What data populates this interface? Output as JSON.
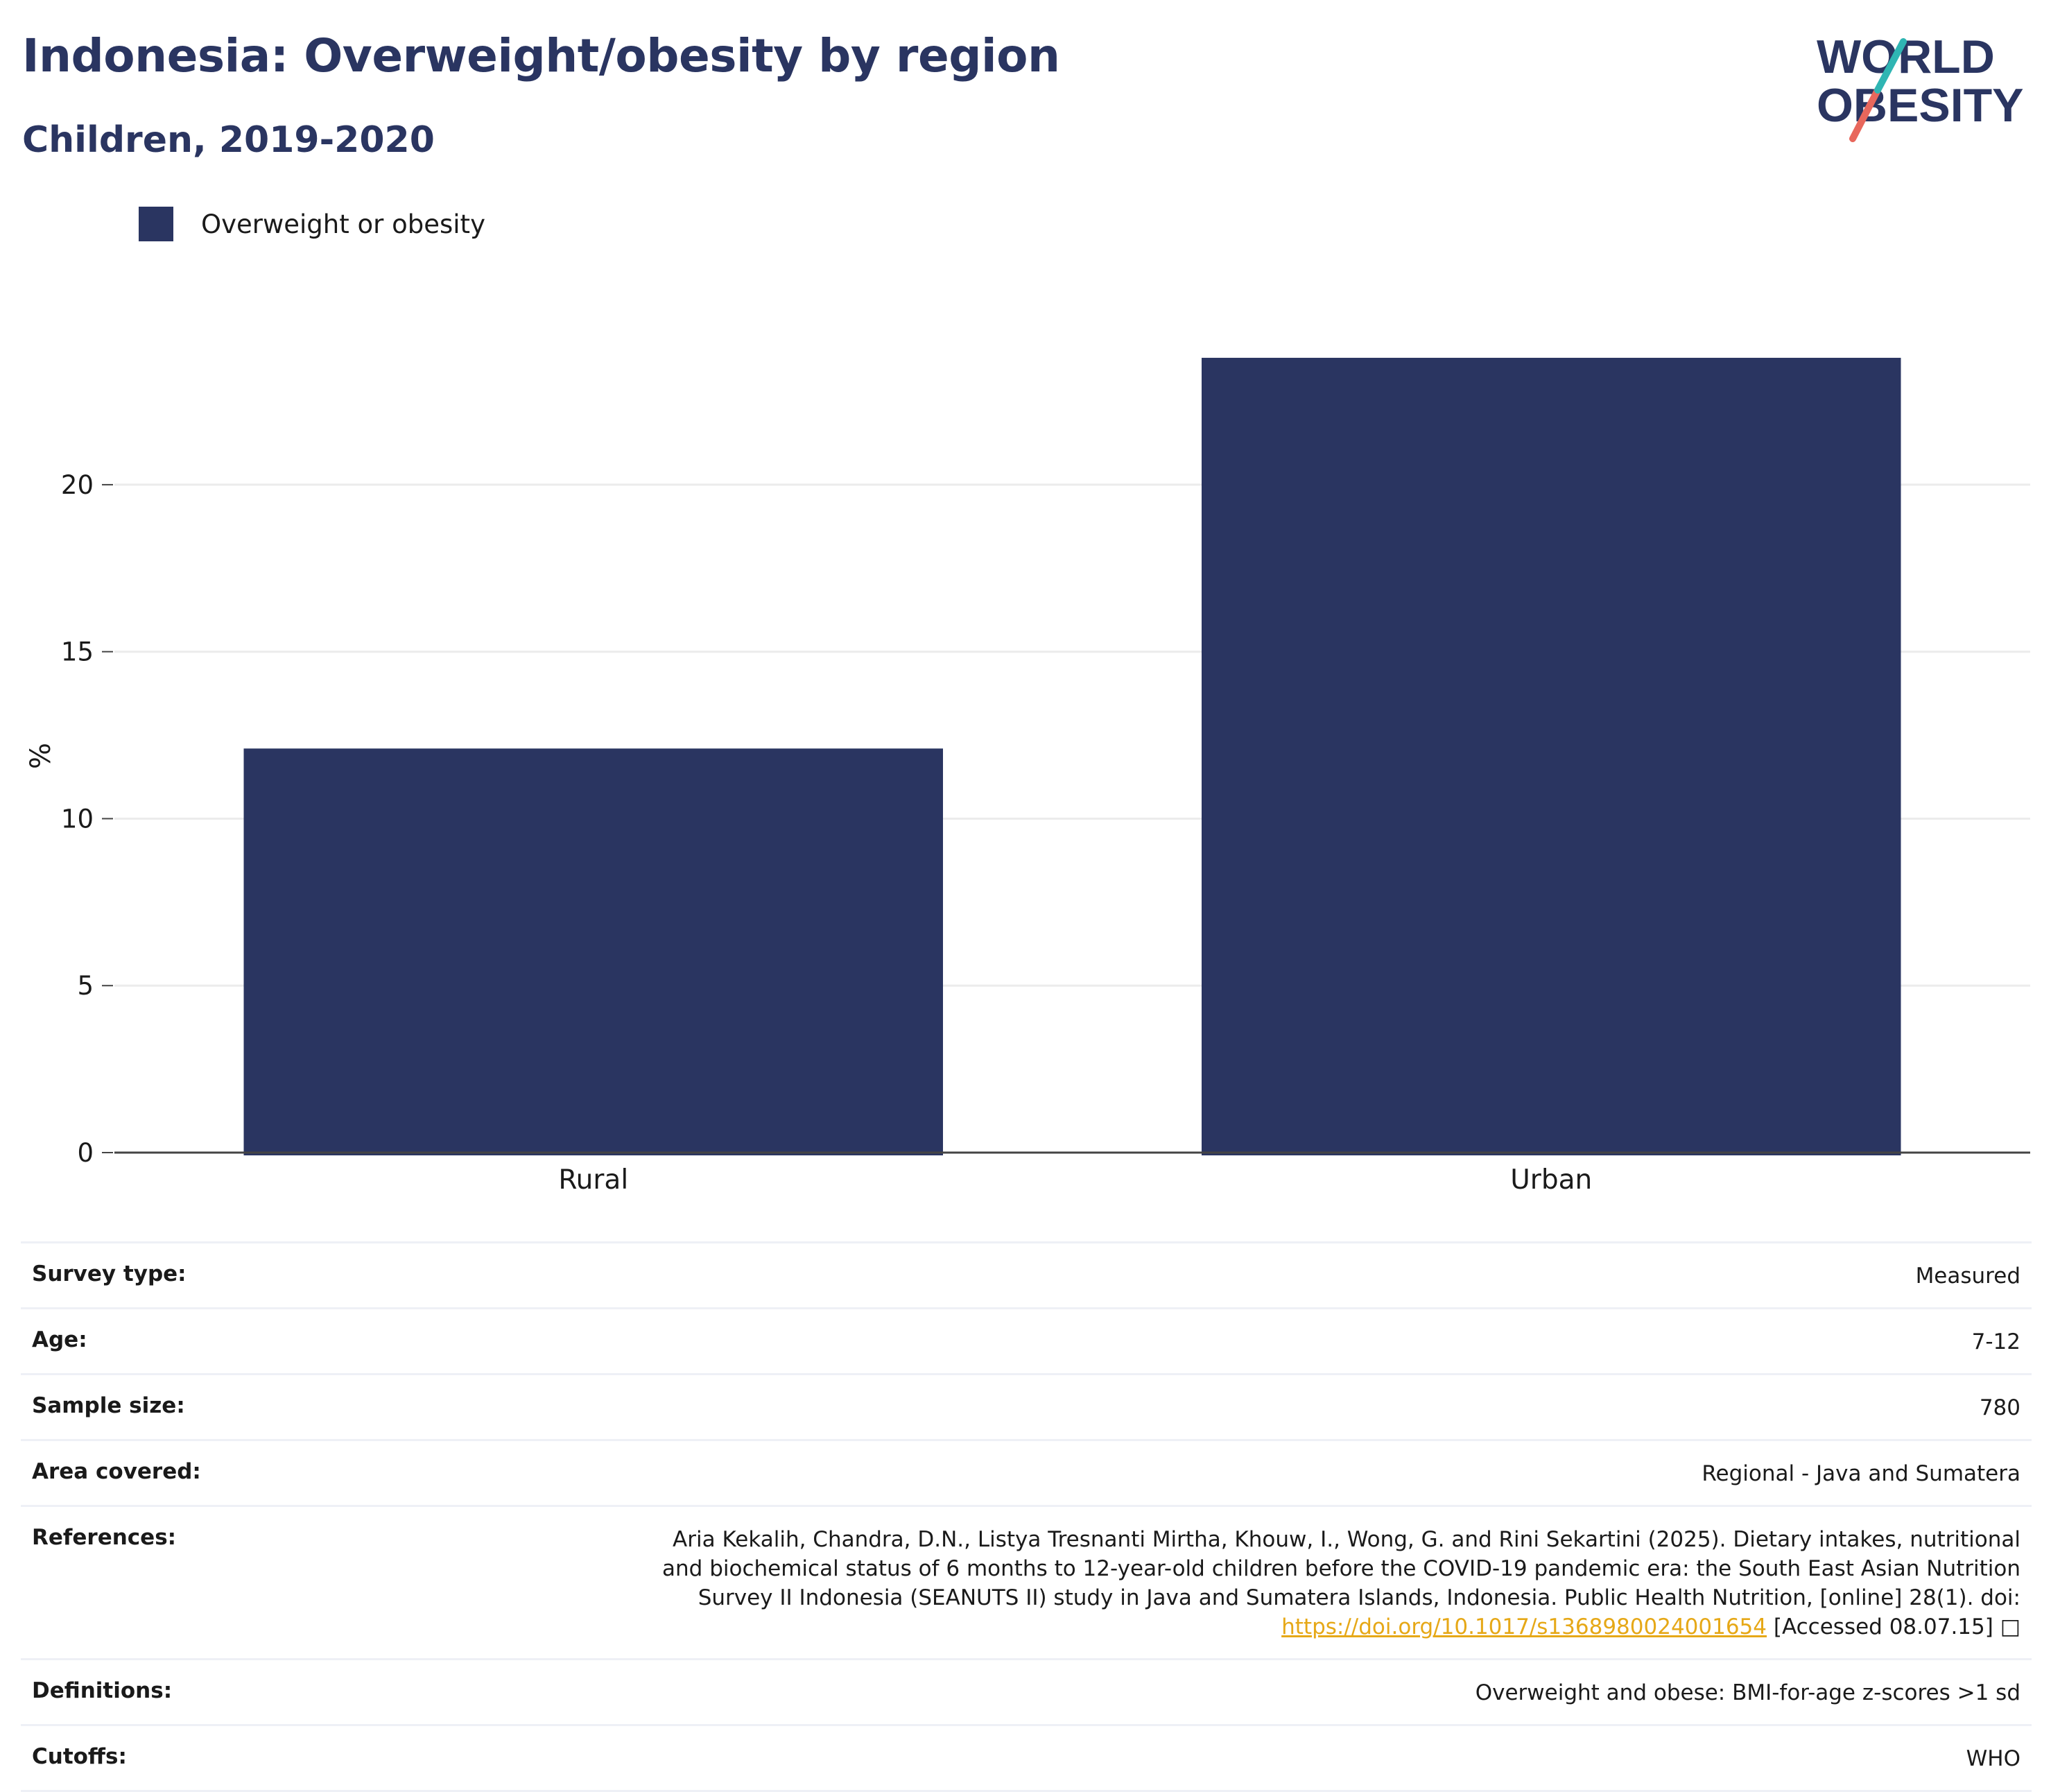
{
  "header": {
    "title": "Indonesia: Overweight/obesity by region",
    "subtitle": "Children, 2019-2020"
  },
  "logo": {
    "line1": "WORLD",
    "line2": "OBESITY",
    "name": "world-obesity-logo"
  },
  "colors": {
    "bar": "#2a3561",
    "title": "#2a3561",
    "link": "#e6a817",
    "grid": "#ececec"
  },
  "chart_data": {
    "type": "bar",
    "categories": [
      "Rural",
      "Urban"
    ],
    "series": [
      {
        "name": "Overweight or obesity",
        "values": [
          12.1,
          23.8
        ]
      }
    ],
    "xlabel": "",
    "ylabel": "%",
    "ylim": [
      0,
      26
    ],
    "yticks": [
      0,
      5,
      10,
      15,
      20
    ],
    "grid": true,
    "legend": "top-left"
  },
  "details": {
    "survey_type": {
      "label": "Survey type:",
      "value": "Measured"
    },
    "age": {
      "label": "Age:",
      "value": "7-12"
    },
    "sample_size": {
      "label": "Sample size:",
      "value": "780"
    },
    "area_covered": {
      "label": "Area covered:",
      "value": "Regional - Java and Sumatera"
    },
    "references": {
      "label": "References:",
      "text": "Aria Kekalih, Chandra, D.N., Listya Tresnanti Mirtha, Khouw, I., Wong, G. and Rini Sekartini (2025). Dietary intakes, nutritional and biochemical status of 6 months to 12-year-old children before the COVID-19 pandemic era: the South East Asian Nutrition Survey II Indonesia (SEANUTS II) study in Java and Sumatera Islands, Indonesia. Public Health Nutrition, [online] 28(1). doi:",
      "link": "https://doi.org/10.1017/s1368980024001654",
      "accessed": "[Accessed 08.07.15]",
      "icon": "external-link-icon"
    },
    "definitions": {
      "label": "Definitions:",
      "value": "Overweight and obese: BMI-for-age z-scores >1 sd"
    },
    "cutoffs": {
      "label": "Cutoffs:",
      "value": "WHO"
    }
  }
}
